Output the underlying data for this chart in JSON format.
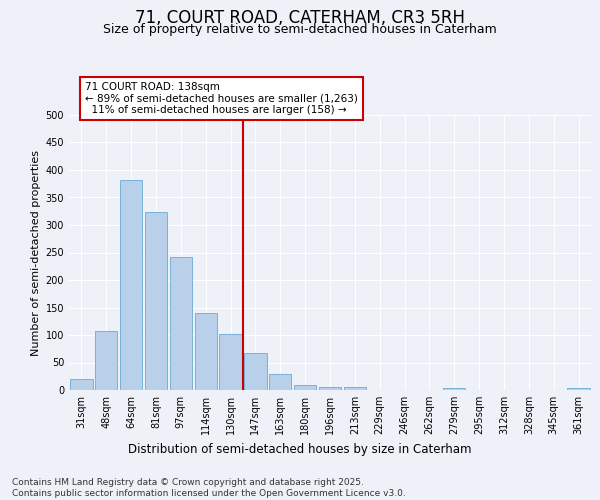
{
  "title1": "71, COURT ROAD, CATERHAM, CR3 5RH",
  "title2": "Size of property relative to semi-detached houses in Caterham",
  "xlabel": "Distribution of semi-detached houses by size in Caterham",
  "ylabel": "Number of semi-detached properties",
  "categories": [
    "31sqm",
    "48sqm",
    "64sqm",
    "81sqm",
    "97sqm",
    "114sqm",
    "130sqm",
    "147sqm",
    "163sqm",
    "180sqm",
    "196sqm",
    "213sqm",
    "229sqm",
    "246sqm",
    "262sqm",
    "279sqm",
    "295sqm",
    "312sqm",
    "328sqm",
    "345sqm",
    "361sqm"
  ],
  "values": [
    20,
    107,
    382,
    323,
    242,
    140,
    101,
    67,
    30,
    10,
    5,
    5,
    0,
    0,
    0,
    3,
    0,
    0,
    0,
    0,
    3
  ],
  "bar_color": "#b8d0ea",
  "bar_edge_color": "#6aaad4",
  "vline_x": 6.5,
  "vline_color": "#cc0000",
  "annotation_text": "71 COURT ROAD: 138sqm\n← 89% of semi-detached houses are smaller (1,263)\n  11% of semi-detached houses are larger (158) →",
  "ylim": [
    0,
    500
  ],
  "yticks": [
    0,
    50,
    100,
    150,
    200,
    250,
    300,
    350,
    400,
    450,
    500
  ],
  "footer": "Contains HM Land Registry data © Crown copyright and database right 2025.\nContains public sector information licensed under the Open Government Licence v3.0.",
  "bg_color": "#eef2f8",
  "grid_color": "#ffffff",
  "title1_fontsize": 12,
  "title2_fontsize": 9,
  "ylabel_fontsize": 8,
  "xlabel_fontsize": 8.5,
  "tick_fontsize": 7,
  "annotation_fontsize": 7.5,
  "footer_fontsize": 6.5
}
